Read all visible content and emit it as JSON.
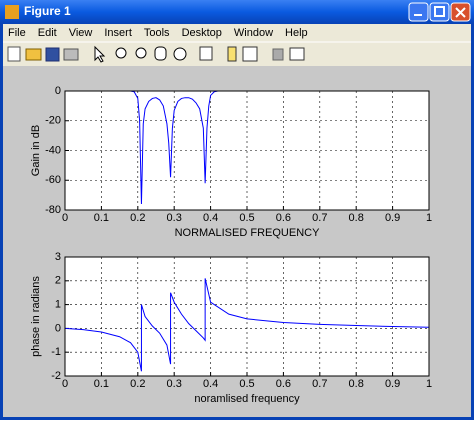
{
  "window": {
    "title": "Figure 1",
    "menu": [
      "File",
      "Edit",
      "View",
      "Insert",
      "Tools",
      "Desktop",
      "Window",
      "Help"
    ]
  },
  "chart_data": [
    {
      "type": "line",
      "xlabel": "NORMALISED FREQUENCY",
      "ylabel": "Gain in dB",
      "x": [
        0,
        0.1,
        0.18,
        0.19,
        0.2,
        0.205,
        0.21,
        0.215,
        0.22,
        0.23,
        0.24,
        0.25,
        0.26,
        0.27,
        0.28,
        0.285,
        0.29,
        0.295,
        0.3,
        0.31,
        0.32,
        0.33,
        0.34,
        0.35,
        0.36,
        0.37,
        0.38,
        0.385,
        0.39,
        0.395,
        0.4,
        0.41,
        0.42,
        0.5,
        0.7,
        1
      ],
      "values": [
        0,
        0,
        0,
        -0.5,
        -5,
        -20,
        -76,
        -22,
        -12,
        -7,
        -5,
        -4.5,
        -6,
        -10,
        -22,
        -35,
        -58,
        -25,
        -13,
        -7,
        -5,
        -4.5,
        -4.5,
        -5.5,
        -8,
        -12,
        -25,
        -62,
        -25,
        -10,
        -3,
        -0.5,
        0,
        0,
        0,
        0
      ],
      "color": "#0000ff",
      "xlim": [
        0,
        1
      ],
      "ylim": [
        -80,
        0
      ],
      "xticks": [
        0,
        0.1,
        0.2,
        0.3,
        0.4,
        0.5,
        0.6,
        0.7,
        0.8,
        0.9,
        1
      ],
      "yticks": [
        -80,
        -60,
        -40,
        -20,
        0
      ],
      "grid": true
    },
    {
      "type": "line",
      "xlabel": "noramlised frequency",
      "ylabel": "phase in radians",
      "x": [
        0,
        0.05,
        0.1,
        0.15,
        0.18,
        0.2,
        0.21,
        0.21,
        0.22,
        0.24,
        0.26,
        0.28,
        0.29,
        0.29,
        0.3,
        0.32,
        0.34,
        0.36,
        0.38,
        0.385,
        0.385,
        0.4,
        0.45,
        0.5,
        0.6,
        0.7,
        0.8,
        0.9,
        1
      ],
      "values": [
        0,
        -0.05,
        -0.15,
        -0.35,
        -0.6,
        -1,
        -1.8,
        1.0,
        0.5,
        0.1,
        -0.2,
        -0.7,
        -1.5,
        1.5,
        1.1,
        0.6,
        0.2,
        -0.1,
        -0.4,
        -0.5,
        2.1,
        1.1,
        0.6,
        0.4,
        0.25,
        0.17,
        0.12,
        0.08,
        0.05
      ],
      "color": "#0000ff",
      "xlim": [
        0,
        1
      ],
      "ylim": [
        -2,
        3
      ],
      "xticks": [
        0,
        0.1,
        0.2,
        0.3,
        0.4,
        0.5,
        0.6,
        0.7,
        0.8,
        0.9,
        1
      ],
      "yticks": [
        -2,
        -1,
        0,
        1,
        2,
        3
      ],
      "grid": true
    }
  ]
}
